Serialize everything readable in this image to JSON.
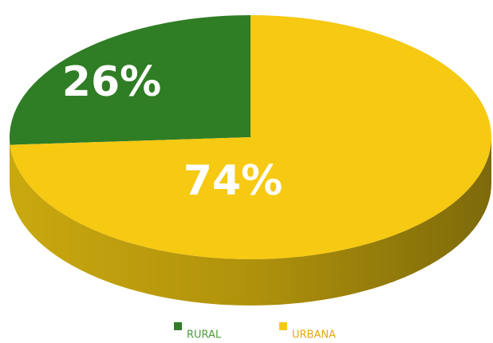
{
  "chart_data": {
    "type": "pie",
    "categories": [
      "RURAL",
      "URBANA"
    ],
    "values": [
      26,
      74
    ],
    "value_labels": [
      "26%",
      "74%"
    ],
    "colors": [
      "#2f7d25",
      "#f6c913"
    ],
    "legend_text_colors": [
      "#4f9a3a",
      "#e8a90c"
    ]
  }
}
